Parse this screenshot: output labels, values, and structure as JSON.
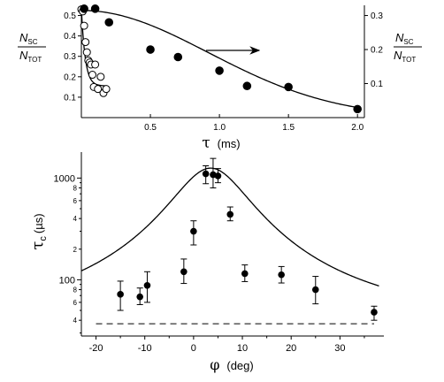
{
  "chart_data": [
    {
      "type": "scatter",
      "panel": "top",
      "xlabel_symbol": "τ",
      "xlabel_unit": "(ms)",
      "xlim": [
        0,
        2.05
      ],
      "x_ticks": [
        0.5,
        1.0,
        1.5,
        2.0
      ],
      "x_tick_labels": [
        "0.5",
        "1.0",
        "1.5",
        "2.0"
      ],
      "left_axis": {
        "ylim": [
          0,
          0.55
        ],
        "ticks": [
          0.1,
          0.2,
          0.3,
          0.4,
          0.5
        ],
        "tick_labels": [
          "0.1",
          "0.2",
          "0.3",
          "0.4",
          "0.5"
        ],
        "label_num": "N",
        "label_num_sub": "SC",
        "label_den": "N",
        "label_den_sub": "TOT"
      },
      "right_axis": {
        "ylim": [
          0,
          0.33
        ],
        "ticks": [
          0.1,
          0.2,
          0.3
        ],
        "tick_labels": [
          "0.1",
          "0.2",
          "0.3"
        ],
        "label_num": "N",
        "label_num_sub": "SC",
        "label_den": "N",
        "label_den_sub": "TOT"
      },
      "series": [
        {
          "marker": "open",
          "axis": "left",
          "x": [
            0.0,
            0.01,
            0.02,
            0.03,
            0.04,
            0.05,
            0.06,
            0.07,
            0.08,
            0.09,
            0.1,
            0.12,
            0.14,
            0.16,
            0.18
          ],
          "y": [
            0.53,
            0.52,
            0.45,
            0.37,
            0.32,
            0.28,
            0.27,
            0.26,
            0.21,
            0.15,
            0.26,
            0.14,
            0.2,
            0.12,
            0.14
          ]
        },
        {
          "marker": "filled",
          "axis": "right",
          "x": [
            0.02,
            0.1,
            0.2,
            0.5,
            0.7,
            1.0,
            1.2,
            1.5,
            2.0
          ],
          "y": [
            0.32,
            0.32,
            0.28,
            0.2,
            0.178,
            0.138,
            0.093,
            0.09,
            0.025
          ]
        }
      ],
      "fits": [
        {
          "axis": "left",
          "model": "exp",
          "a": 0.38,
          "tau": 0.028,
          "c": 0.155,
          "x_range": [
            0,
            0.18
          ]
        },
        {
          "axis": "right",
          "model": "gauss",
          "a": 0.315,
          "sigma": 0.92,
          "x_range": [
            0,
            2.0
          ]
        }
      ],
      "annotation": "arrow pointing right toward the right-hand axis"
    },
    {
      "type": "scatter",
      "panel": "bottom",
      "y_scale": "log",
      "xlabel_symbol": "φ",
      "xlabel_unit": "(deg)",
      "ylabel_symbol": "τ",
      "ylabel_sub": "c",
      "ylabel_unit": "(µs)",
      "xlim": [
        -23,
        39
      ],
      "ylim": [
        28,
        1800
      ],
      "x_ticks": [
        -20,
        -10,
        0,
        10,
        20,
        30
      ],
      "x_tick_labels": [
        "-20",
        "-10",
        "0",
        "10",
        "20",
        "30"
      ],
      "y_major_ticks": [
        100,
        1000
      ],
      "y_major_labels": [
        "100",
        "1000"
      ],
      "y_minor_ticks": [
        40,
        60,
        80,
        200,
        400,
        600,
        800
      ],
      "y_minor_labels": [
        "4",
        "6",
        "8",
        "2",
        "4",
        "6",
        "8"
      ],
      "points": [
        {
          "x": -15,
          "y": 72,
          "lo": 50,
          "hi": 97
        },
        {
          "x": -11,
          "y": 68,
          "lo": 57,
          "hi": 83
        },
        {
          "x": -9.5,
          "y": 88,
          "lo": 60,
          "hi": 120
        },
        {
          "x": -2,
          "y": 120,
          "lo": 92,
          "hi": 160
        },
        {
          "x": 0,
          "y": 300,
          "lo": 220,
          "hi": 380
        },
        {
          "x": 2.5,
          "y": 1100,
          "lo": 880,
          "hi": 1320
        },
        {
          "x": 4,
          "y": 1080,
          "lo": 800,
          "hi": 1560
        },
        {
          "x": 5,
          "y": 1050,
          "lo": 900,
          "hi": 1240
        },
        {
          "x": 7.5,
          "y": 440,
          "lo": 380,
          "hi": 520
        },
        {
          "x": 10.5,
          "y": 115,
          "lo": 96,
          "hi": 140
        },
        {
          "x": 18,
          "y": 112,
          "lo": 93,
          "hi": 135
        },
        {
          "x": 25,
          "y": 80,
          "lo": 58,
          "hi": 108
        },
        {
          "x": 37,
          "y": 48,
          "lo": 40,
          "hi": 55
        }
      ],
      "fit": {
        "model": "lorentzian",
        "baseline": 32,
        "amplitude": 1220,
        "center": 3.5,
        "width": 7.5
      },
      "reference_line": {
        "y": 37,
        "style": "dashed"
      }
    }
  ]
}
